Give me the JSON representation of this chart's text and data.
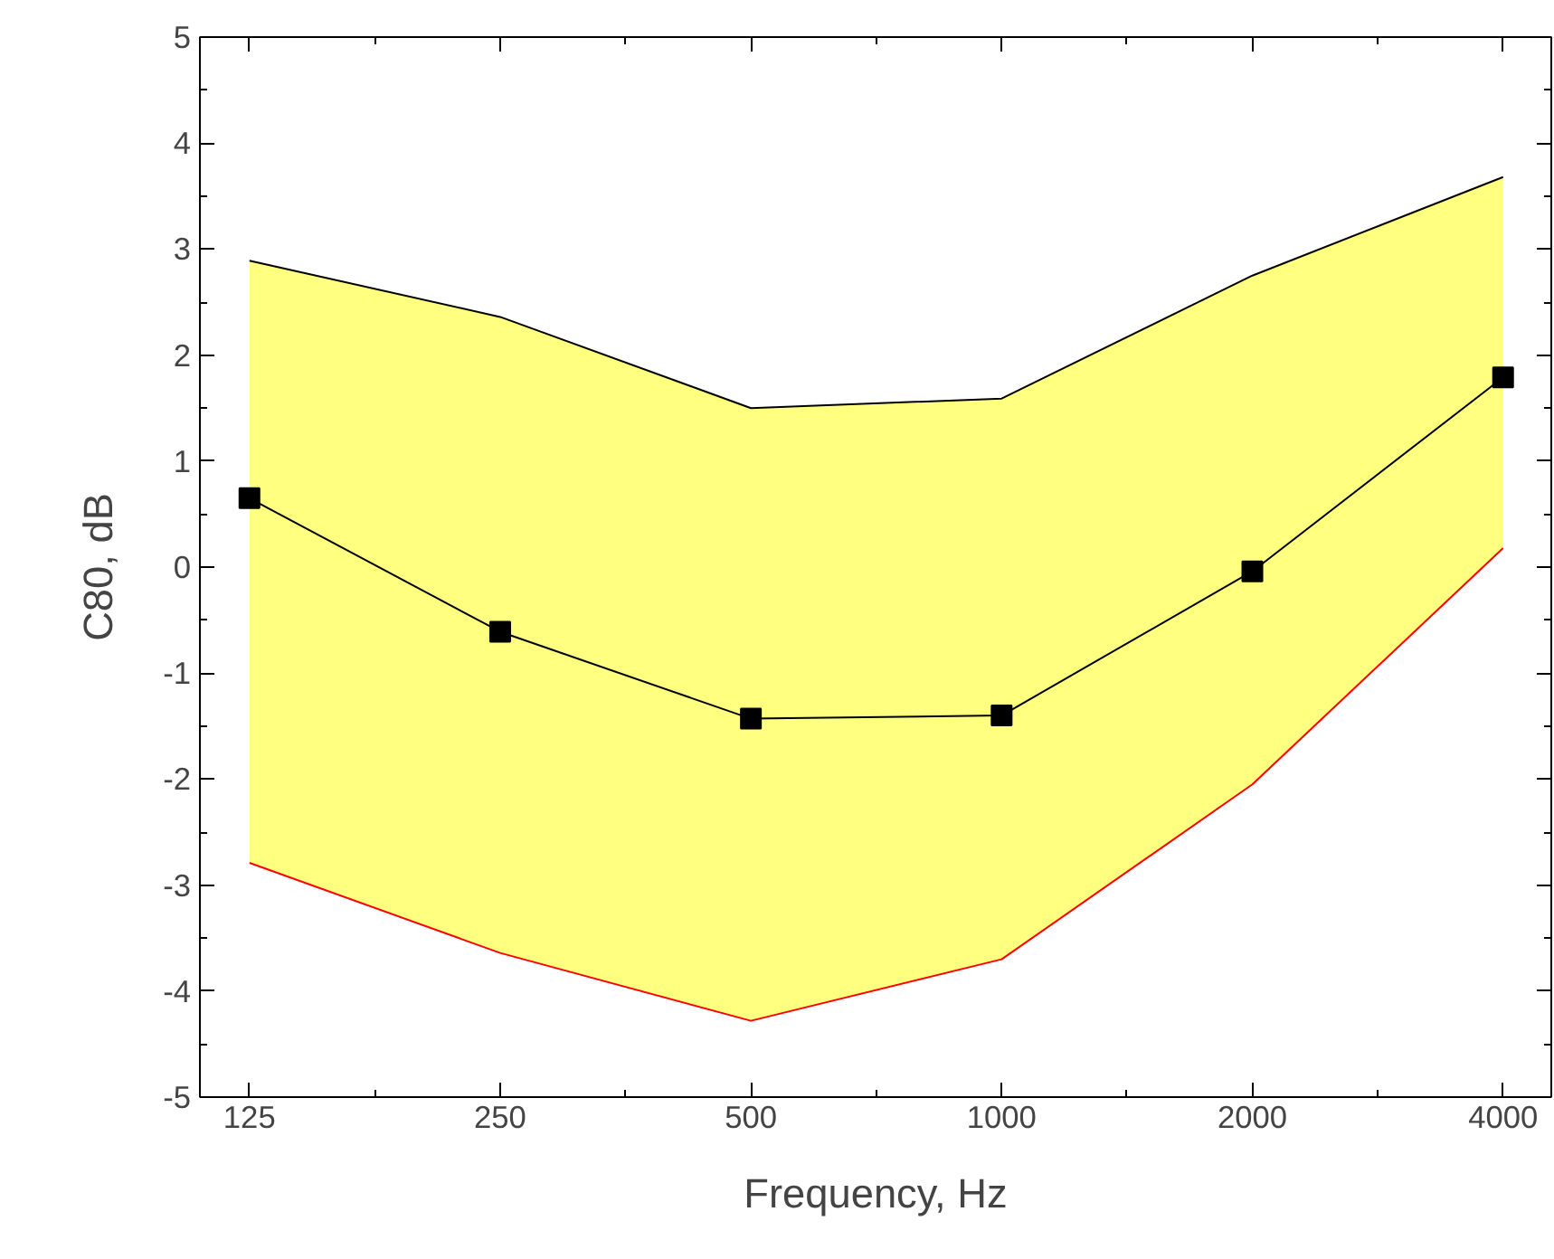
{
  "chart_data": {
    "type": "line",
    "xlabel": "Frequency, Hz",
    "ylabel": "C80, dB",
    "log": "x",
    "x": [
      125,
      250,
      500,
      1000,
      2000,
      4000
    ],
    "series": [
      {
        "color": "#000000",
        "marker": "none",
        "values": [
          2.89,
          2.36,
          1.5,
          1.59,
          2.75,
          3.68
        ]
      },
      {
        "color": "#ff0000",
        "marker": "none",
        "values": [
          -2.79,
          -3.64,
          -4.28,
          -3.7,
          -2.05,
          0.18
        ]
      },
      {
        "color": "#000000",
        "values": [
          0.65,
          -0.61,
          -1.43,
          -1.4,
          -0.04,
          1.79
        ],
        "lower": [
          -2.79,
          -3.64,
          -4.28,
          -3.7,
          -2.05,
          0.18
        ],
        "upper": [
          2.89,
          2.36,
          1.5,
          1.59,
          2.75,
          3.68
        ]
      }
    ],
    "marker": "square",
    "line_style": "solid",
    "grid": false,
    "xlim": [
      109,
      4570
    ],
    "xticks": [
      125,
      250,
      500,
      1000,
      2000,
      4000
    ],
    "ylim": [
      -5,
      5
    ],
    "yticks": [
      -5,
      -4,
      -3,
      -2,
      -1,
      0,
      1,
      2,
      3,
      4,
      5
    ]
  }
}
